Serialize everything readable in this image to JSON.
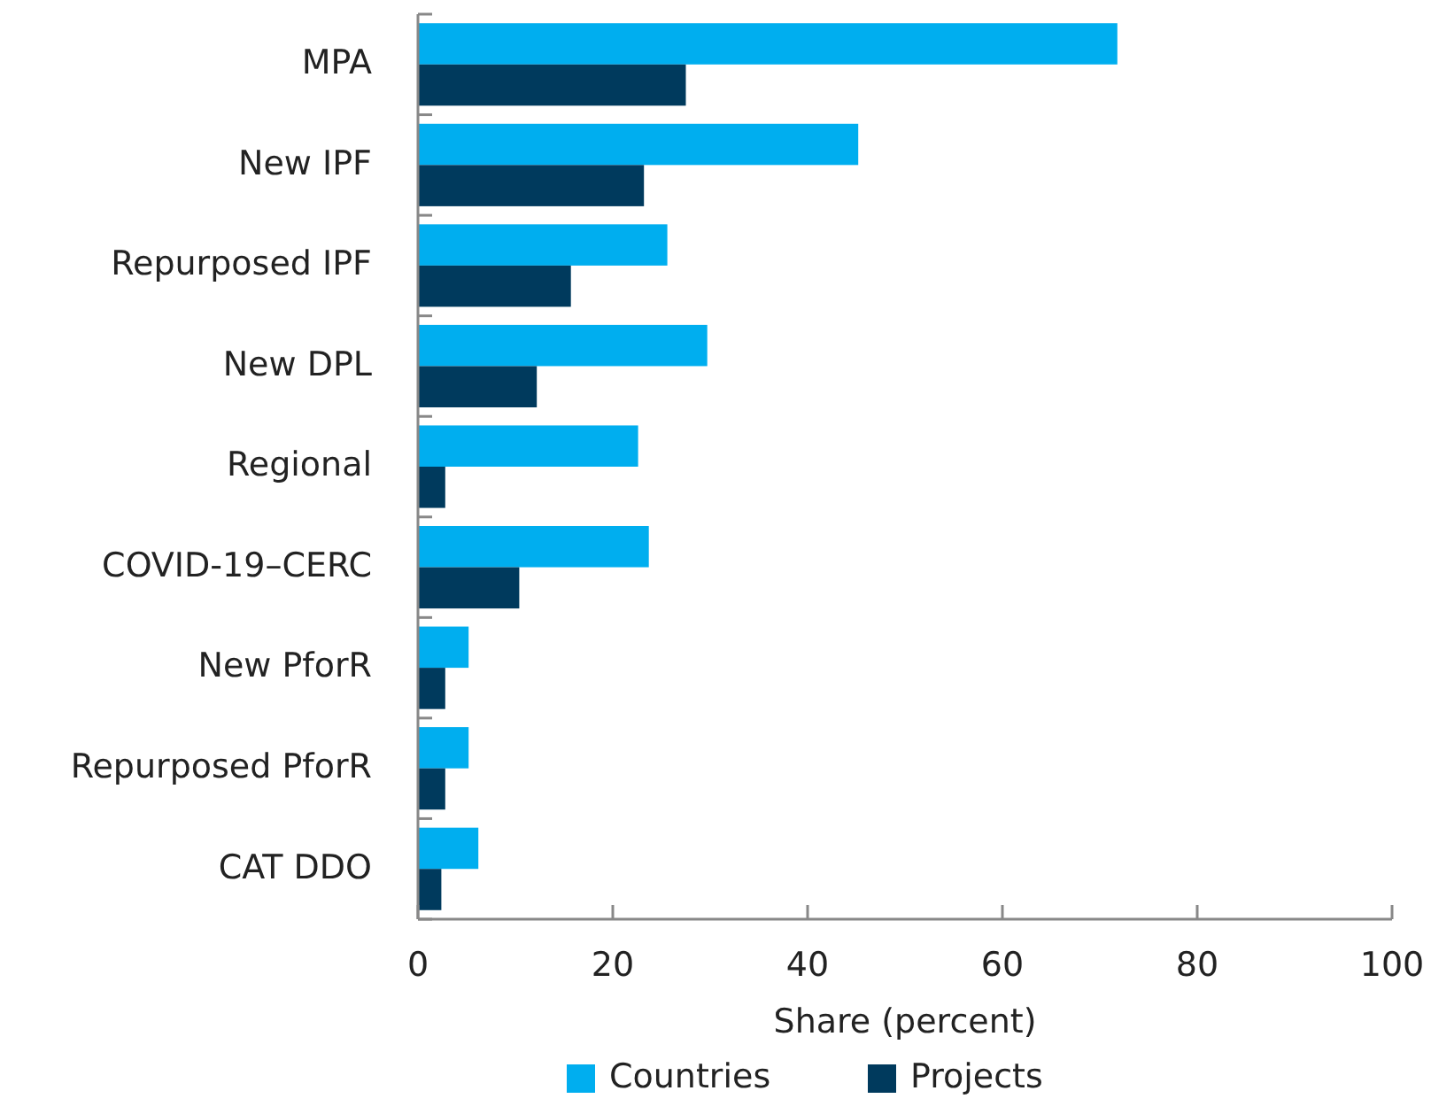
{
  "chart_data": {
    "type": "bar",
    "orientation": "horizontal",
    "xlabel": "Share (percent)",
    "categories": [
      "MPA",
      "New IPF",
      "Repurposed IPF",
      "New DPL",
      "Regional",
      "COVID-19–CERC",
      "New PforR",
      "Repurposed PforR",
      "CAT DDO"
    ],
    "series": [
      {
        "name": "Countries",
        "color": "#00aeef",
        "values": [
          71.8,
          45.2,
          25.6,
          29.7,
          22.6,
          23.7,
          5.2,
          5.2,
          6.2
        ]
      },
      {
        "name": "Projects",
        "color": "#003a5d",
        "values": [
          27.5,
          23.2,
          15.7,
          12.2,
          2.8,
          10.4,
          2.8,
          2.8,
          2.4
        ]
      }
    ],
    "xlim": [
      0,
      100
    ],
    "xticks": [
      0,
      20,
      40,
      60,
      80,
      100
    ],
    "grid": false,
    "legend": "bottom"
  }
}
